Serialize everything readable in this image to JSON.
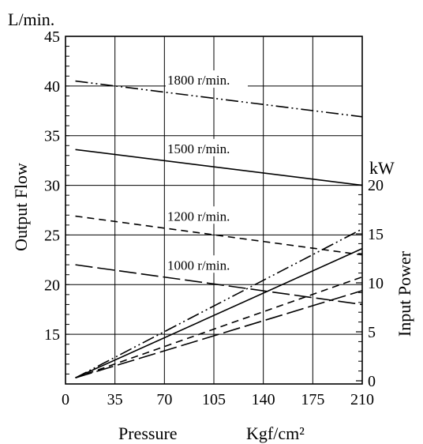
{
  "chart_data": {
    "type": "line",
    "xlabel": "Pressure",
    "xunit": "Kgf/cm²",
    "ylabel_left": "Output Flow",
    "yunit_left": "L/min.",
    "ylabel_right": "Input Power",
    "yunit_right": "kW",
    "x_ticks": [
      "0",
      "35",
      "70",
      "105",
      "140",
      "175",
      "210"
    ],
    "y_left_ticks": [
      "15",
      "20",
      "25",
      "30",
      "35",
      "40",
      "45"
    ],
    "y_right_ticks": [
      "0",
      "5",
      "10",
      "15",
      "20"
    ],
    "xlim": [
      0,
      210
    ],
    "ylim_left": [
      10,
      45
    ],
    "ylim_right": [
      0,
      20
    ],
    "grid": true,
    "flow_series": [
      {
        "name": "1800 r/min.",
        "dash": "dashdotdot",
        "x": [
          7,
          210
        ],
        "y": [
          40.5,
          36.9
        ]
      },
      {
        "name": "1500 r/min.",
        "dash": "solid",
        "x": [
          7,
          210
        ],
        "y": [
          33.6,
          30.0
        ]
      },
      {
        "name": "1200 r/min.",
        "dash": "dashed",
        "x": [
          7,
          210
        ],
        "y": [
          26.9,
          23.0
        ]
      },
      {
        "name": "1000 r/min.",
        "dash": "longdash",
        "x": [
          7,
          210
        ],
        "y": [
          22.0,
          18.0
        ]
      }
    ],
    "power_series": [
      {
        "ref": "1800 r/min.",
        "dash": "dashdotdot",
        "x": [
          7,
          210
        ],
        "y": [
          0.3,
          15.5
        ]
      },
      {
        "ref": "1500 r/min.",
        "dash": "solid",
        "x": [
          7,
          210
        ],
        "y": [
          0.3,
          13.5
        ]
      },
      {
        "ref": "1200 r/min.",
        "dash": "dashed",
        "x": [
          7,
          210
        ],
        "y": [
          0.3,
          10.6
        ]
      },
      {
        "ref": "1000 r/min.",
        "dash": "longdash",
        "x": [
          7,
          210
        ],
        "y": [
          0.3,
          9.2
        ]
      }
    ]
  }
}
